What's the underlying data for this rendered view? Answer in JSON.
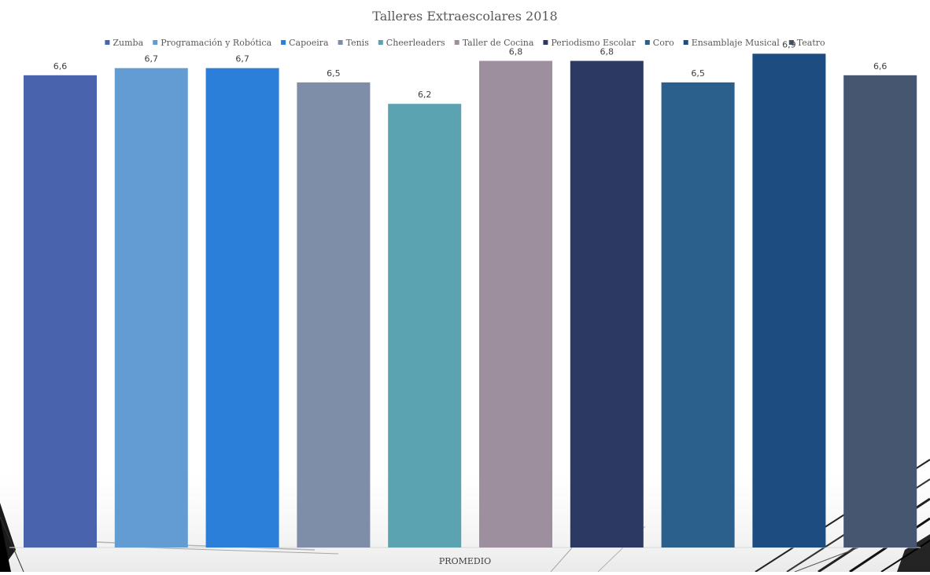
{
  "chart_data": {
    "type": "bar",
    "title": "Talleres Extraescolares 2018",
    "xlabel": "PROMEDIO",
    "ylabel": "",
    "categories": [
      "PROMEDIO"
    ],
    "ylim": [
      0,
      7.3
    ],
    "grid": false,
    "legend_position": "top",
    "value_labels_format": "comma-decimal",
    "series": [
      {
        "name": "Zumba",
        "values": [
          6.6
        ],
        "label": "6,6",
        "color": "#4a63ad"
      },
      {
        "name": "Programación y Robótica",
        "values": [
          6.7
        ],
        "label": "6,7",
        "color": "#629cd3"
      },
      {
        "name": "Capoeira",
        "values": [
          6.7
        ],
        "label": "6,7",
        "color": "#2b7fd8"
      },
      {
        "name": "Tenis",
        "values": [
          6.5
        ],
        "label": "6,5",
        "color": "#7e8ea8"
      },
      {
        "name": "Cheerleaders",
        "values": [
          6.2
        ],
        "label": "6,2",
        "color": "#5ba3b0"
      },
      {
        "name": "Taller de Cocina",
        "values": [
          6.8
        ],
        "label": "6,8",
        "color": "#9e8f9f"
      },
      {
        "name": "Periodismo Escolar",
        "values": [
          6.8
        ],
        "label": "6,8",
        "color": "#2c3a63"
      },
      {
        "name": "Coro",
        "values": [
          6.5
        ],
        "label": "6,5",
        "color": "#2b5f8c"
      },
      {
        "name": "Ensamblaje Musical",
        "values": [
          6.9
        ],
        "label": "6,9",
        "color": "#1d4c80"
      },
      {
        "name": "Teatro",
        "values": [
          6.6
        ],
        "label": "6,6",
        "color": "#465570"
      }
    ]
  }
}
